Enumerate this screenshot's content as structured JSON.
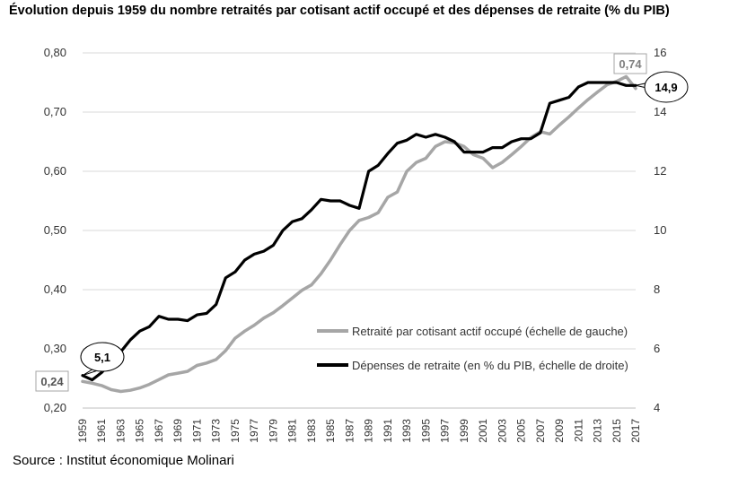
{
  "title": "Évolution depuis 1959 du nombre retraités par cotisant actif occupé et des dépenses de retraite (% du PIB)",
  "source": "Source : Institut économique Molinari",
  "chart_data": {
    "type": "line",
    "x": [
      1959,
      1960,
      1961,
      1962,
      1963,
      1964,
      1965,
      1966,
      1967,
      1968,
      1969,
      1970,
      1971,
      1972,
      1973,
      1974,
      1975,
      1976,
      1977,
      1978,
      1979,
      1980,
      1981,
      1982,
      1983,
      1984,
      1985,
      1986,
      1987,
      1988,
      1989,
      1990,
      1991,
      1992,
      1993,
      1994,
      1995,
      1996,
      1997,
      1998,
      1999,
      2000,
      2001,
      2002,
      2003,
      2004,
      2005,
      2006,
      2007,
      2008,
      2009,
      2010,
      2011,
      2012,
      2013,
      2014,
      2015,
      2016,
      2017
    ],
    "x_tick_labels": [
      "1959",
      "1961",
      "1963",
      "1965",
      "1967",
      "1969",
      "1971",
      "1973",
      "1975",
      "1977",
      "1979",
      "1981",
      "1983",
      "1985",
      "1987",
      "1989",
      "1991",
      "1993",
      "1995",
      "1997",
      "1999",
      "2001",
      "2003",
      "2005",
      "2007",
      "2009",
      "2011",
      "2013",
      "2015",
      "2017"
    ],
    "y_left": {
      "ylim": [
        0.2,
        0.8
      ],
      "ticks": [
        "0,20",
        "0,30",
        "0,40",
        "0,50",
        "0,60",
        "0,70",
        "0,80"
      ],
      "tick_values": [
        0.2,
        0.3,
        0.4,
        0.5,
        0.6,
        0.7,
        0.8
      ]
    },
    "y_right": {
      "ylim": [
        4,
        16
      ],
      "ticks": [
        "4",
        "6",
        "8",
        "10",
        "12",
        "14",
        "16"
      ],
      "tick_values": [
        4,
        6,
        8,
        10,
        12,
        14,
        16
      ]
    },
    "grid": "horizontal",
    "legend_position": "right, lower-middle",
    "series": [
      {
        "name": "Retraité par cotisant actif occupé (échelle de gauche)",
        "axis": "left",
        "color": "#a6a6a6",
        "values": [
          0.245,
          0.242,
          0.238,
          0.231,
          0.228,
          0.23,
          0.234,
          0.24,
          0.248,
          0.256,
          0.259,
          0.262,
          0.272,
          0.276,
          0.282,
          0.297,
          0.318,
          0.33,
          0.34,
          0.352,
          0.361,
          0.373,
          0.386,
          0.399,
          0.408,
          0.427,
          0.45,
          0.476,
          0.5,
          0.517,
          0.522,
          0.53,
          0.556,
          0.565,
          0.6,
          0.615,
          0.622,
          0.642,
          0.65,
          0.648,
          0.642,
          0.628,
          0.622,
          0.606,
          0.615,
          0.628,
          0.642,
          0.657,
          0.667,
          0.663,
          0.678,
          0.692,
          0.707,
          0.721,
          0.734,
          0.746,
          0.752,
          0.76,
          0.74
        ]
      },
      {
        "name": "Dépenses de retraite (en % du PIB, échelle de droite)",
        "axis": "right",
        "color": "#000000",
        "values": [
          5.1,
          4.95,
          5.2,
          5.55,
          5.9,
          6.3,
          6.6,
          6.75,
          7.1,
          7.0,
          7.0,
          6.95,
          7.15,
          7.2,
          7.5,
          8.4,
          8.6,
          9.0,
          9.2,
          9.3,
          9.5,
          10.0,
          10.3,
          10.4,
          10.7,
          11.05,
          11.0,
          11.0,
          10.85,
          10.75,
          12.0,
          12.2,
          12.6,
          12.95,
          13.05,
          13.25,
          13.15,
          13.25,
          13.15,
          13.0,
          12.65,
          12.65,
          12.65,
          12.8,
          12.8,
          13.0,
          13.1,
          13.1,
          13.3,
          14.3,
          14.4,
          14.5,
          14.85,
          15.0,
          15.0,
          15.0,
          15.0,
          14.9,
          14.9
        ]
      }
    ],
    "annotations": [
      {
        "label": "0,24",
        "series": "Retraité par cotisant actif occupé (échelle de gauche)",
        "year": 1959,
        "style": "box"
      },
      {
        "label": "0,74",
        "series": "Retraité par cotisant actif occupé (échelle de gauche)",
        "year": 2017,
        "style": "box"
      },
      {
        "label": "5,1",
        "series": "Dépenses de retraite (en % du PIB, échelle de droite)",
        "year": 1959,
        "style": "bubble"
      },
      {
        "label": "14,9",
        "series": "Dépenses de retraite (en % du PIB, échelle de droite)",
        "year": 2017,
        "style": "bubble"
      }
    ]
  }
}
